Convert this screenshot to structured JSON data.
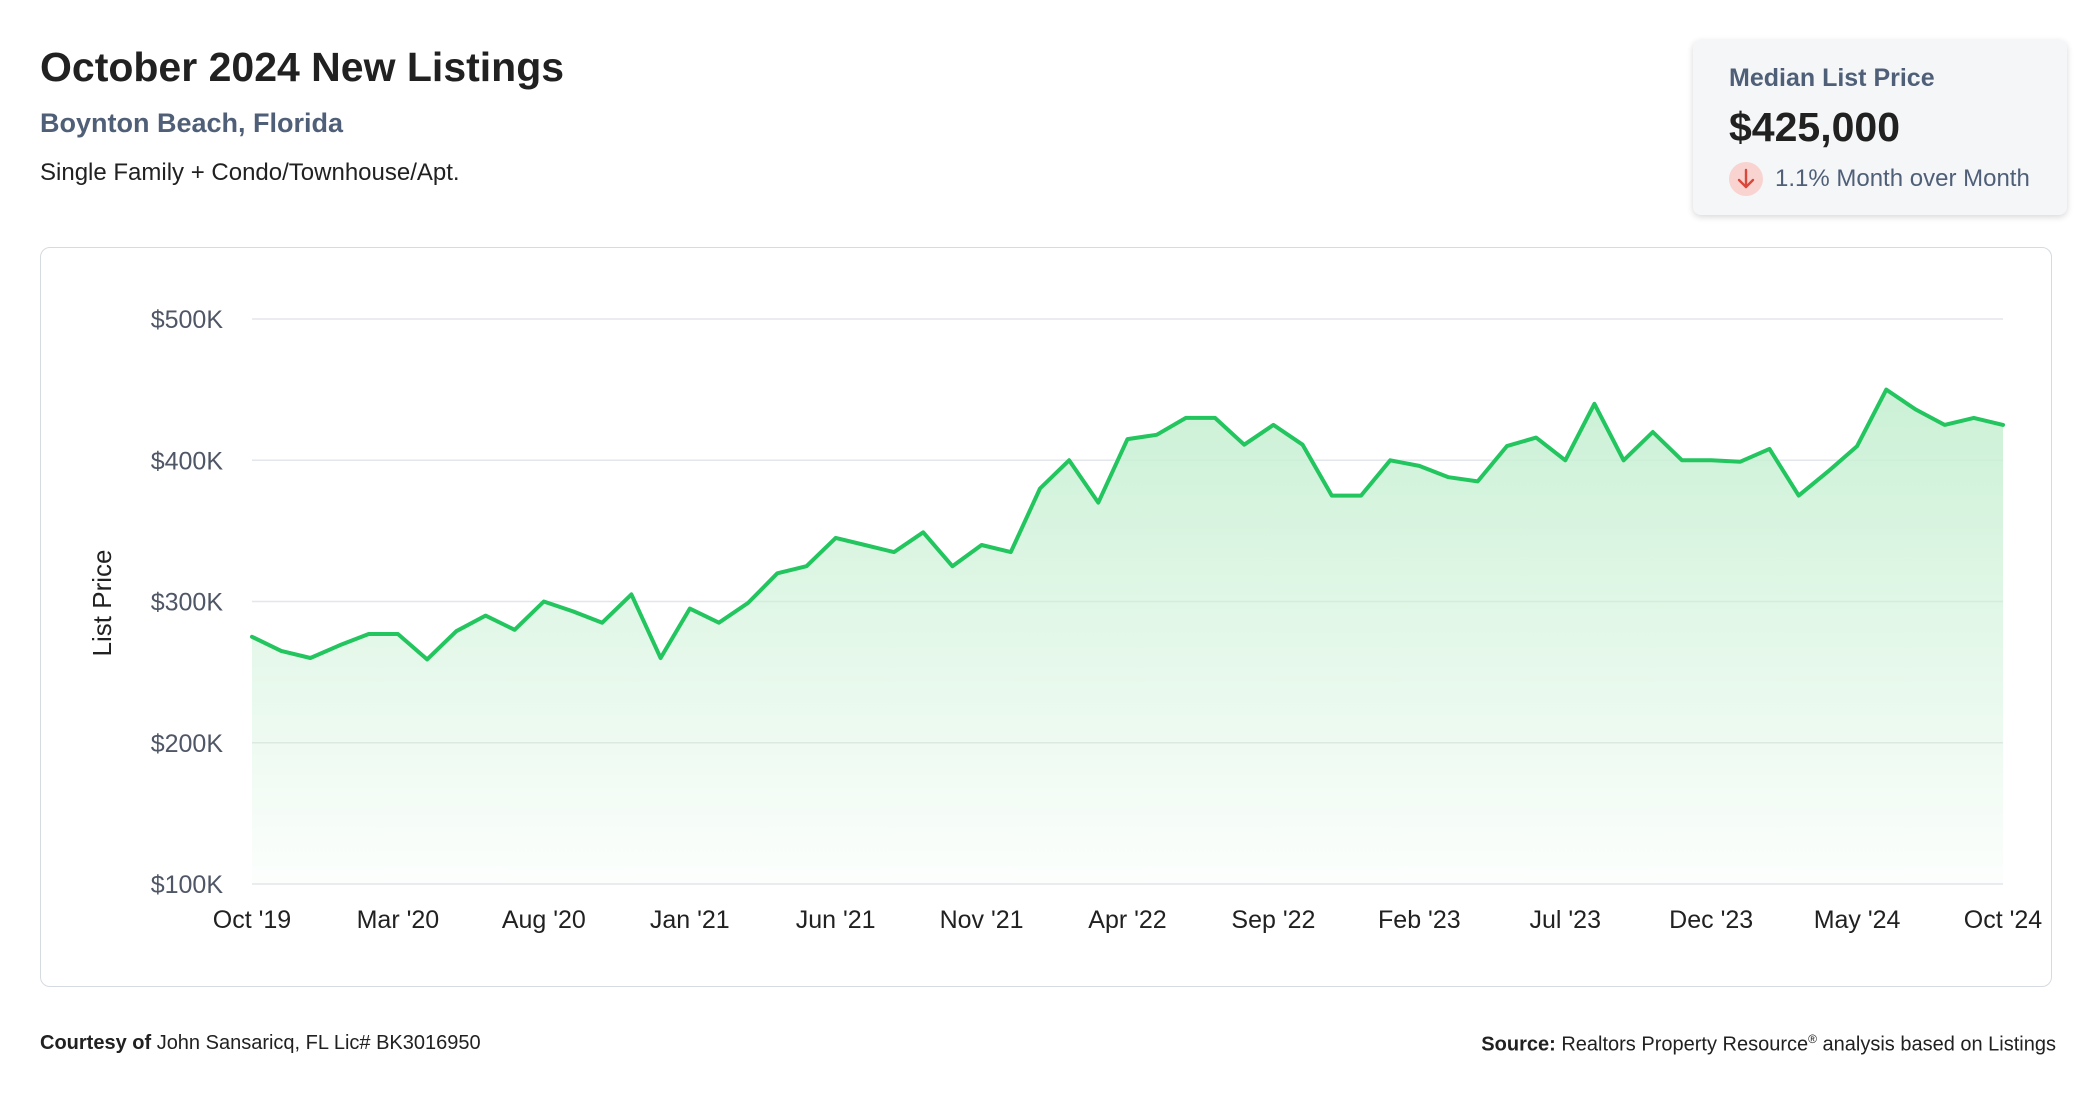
{
  "header": {
    "title": "October 2024 New Listings",
    "location": "Boynton Beach, Florida",
    "property_types": "Single Family + Condo/Townhouse/Apt."
  },
  "summary_card": {
    "label": "Median List Price",
    "value": "$425,000",
    "change_text": "1.1% Month over Month",
    "change_direction": "down",
    "icon": "arrow-down-icon"
  },
  "footer": {
    "courtesy_label": "Courtesy of",
    "courtesy_text": "John Sansaricq, FL Lic# BK3016950",
    "source_label": "Source:",
    "source_name": "Realtors Property Resource",
    "source_mark": "®",
    "source_suffix": "analysis based on Listings"
  },
  "colors": {
    "line": "#22c55e",
    "fill_top": "#c8f0d3",
    "grid": "#e3e6ea",
    "tick_text": "#4f5666",
    "axis_title": "#212121",
    "down_icon": "#d9483b"
  },
  "chart_data": {
    "type": "area",
    "title": "",
    "xlabel": "",
    "ylabel": "List Price",
    "ylim": [
      100000,
      500000
    ],
    "yticks": [
      100000,
      200000,
      300000,
      400000,
      500000
    ],
    "ytick_labels": [
      "$100K",
      "$200K",
      "$300K",
      "$400K",
      "$500K"
    ],
    "xtick_labels": [
      "Oct '19",
      "Mar '20",
      "Aug '20",
      "Jan '21",
      "Jun '21",
      "Nov '21",
      "Apr '22",
      "Sep '22",
      "Feb '23",
      "Jul '23",
      "Dec '23",
      "May '24",
      "Oct '24"
    ],
    "grid": true,
    "x": [
      "2019-10",
      "2019-11",
      "2019-12",
      "2020-01",
      "2020-02",
      "2020-03",
      "2020-04",
      "2020-05",
      "2020-06",
      "2020-07",
      "2020-08",
      "2020-09",
      "2020-10",
      "2020-11",
      "2020-12",
      "2021-01",
      "2021-02",
      "2021-03",
      "2021-04",
      "2021-05",
      "2021-06",
      "2021-07",
      "2021-08",
      "2021-09",
      "2021-10",
      "2021-11",
      "2021-12",
      "2022-01",
      "2022-02",
      "2022-03",
      "2022-04",
      "2022-05",
      "2022-06",
      "2022-07",
      "2022-08",
      "2022-09",
      "2022-10",
      "2022-11",
      "2022-12",
      "2023-01",
      "2023-02",
      "2023-03",
      "2023-04",
      "2023-05",
      "2023-06",
      "2023-07",
      "2023-08",
      "2023-09",
      "2023-10",
      "2023-11",
      "2023-12",
      "2024-01",
      "2024-02",
      "2024-03",
      "2024-04",
      "2024-05",
      "2024-06",
      "2024-07",
      "2024-08",
      "2024-09",
      "2024-10"
    ],
    "series": [
      {
        "values": [
          275000,
          265000,
          260000,
          269000,
          277000,
          277000,
          259000,
          279000,
          290000,
          280000,
          300000,
          293000,
          285000,
          305000,
          260000,
          295000,
          285000,
          299000,
          320000,
          325000,
          345000,
          340000,
          335000,
          349000,
          325000,
          340000,
          335000,
          380000,
          400000,
          370000,
          415000,
          418000,
          430000,
          430000,
          411000,
          425000,
          411000,
          375000,
          375000,
          400000,
          396000,
          388000,
          385000,
          410000,
          416000,
          400000,
          440000,
          400000,
          420000,
          400000,
          400000,
          399000,
          408000,
          375000,
          392000,
          410000,
          450000,
          436000,
          425000,
          430000,
          425000
        ]
      }
    ]
  }
}
